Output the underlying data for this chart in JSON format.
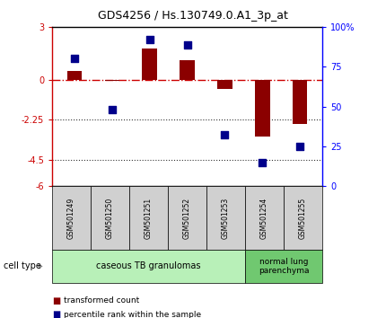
{
  "title": "GDS4256 / Hs.130749.0.A1_3p_at",
  "samples": [
    "GSM501249",
    "GSM501250",
    "GSM501251",
    "GSM501252",
    "GSM501253",
    "GSM501254",
    "GSM501255"
  ],
  "transformed_count": [
    0.5,
    -0.05,
    1.8,
    1.1,
    -0.5,
    -3.2,
    -2.5
  ],
  "percentile_rank": [
    80,
    48,
    92,
    89,
    32,
    15,
    25
  ],
  "ylim_left": [
    -6,
    3
  ],
  "ylim_right": [
    0,
    100
  ],
  "yticks_left": [
    -6,
    -4.5,
    -2.25,
    0,
    3
  ],
  "ytick_labels_left": [
    "-6",
    "-4.5",
    "-2.25",
    "0",
    "3"
  ],
  "yticks_right": [
    0,
    25,
    50,
    75,
    100
  ],
  "ytick_labels_right": [
    "0",
    "25",
    "50",
    "75",
    "100%"
  ],
  "bar_color": "#8B0000",
  "dot_color": "#00008B",
  "zero_line_color": "#CC0000",
  "dotted_line_color": "#333333",
  "group1_label": "caseous TB granulomas",
  "group1_indices": [
    0,
    1,
    2,
    3,
    4
  ],
  "group2_label": "normal lung\nparenchyma",
  "group2_indices": [
    5,
    6
  ],
  "group1_bg": "#b8f0b8",
  "group2_bg": "#70c870",
  "sample_box_bg": "#d0d0d0",
  "legend_red_label": "transformed count",
  "legend_blue_label": "percentile rank within the sample",
  "cell_type_label": "cell type"
}
